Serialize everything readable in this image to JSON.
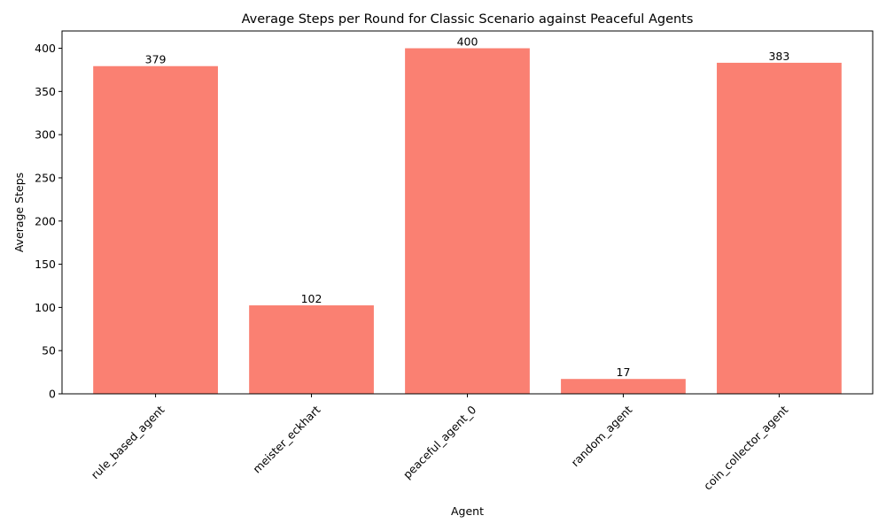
{
  "chart_data": {
    "type": "bar",
    "title": "Average Steps per Round for Classic Scenario against Peaceful Agents",
    "xlabel": "Agent",
    "ylabel": "Average Steps",
    "categories": [
      "rule_based_agent",
      "meister_eckhart",
      "peaceful_agent_0",
      "random_agent",
      "coin_collector_agent"
    ],
    "values": [
      379.3,
      102.4,
      400,
      17.2,
      383.2
    ],
    "value_labels": [
      "379",
      "102",
      "400",
      "17",
      "383"
    ],
    "ylim": [
      0,
      420
    ],
    "yticks": [
      0,
      50,
      100,
      150,
      200,
      250,
      300,
      350,
      400
    ],
    "grid": false,
    "legend": "none",
    "bar_color": "#fa8072",
    "x_tick_rotation": "45"
  }
}
